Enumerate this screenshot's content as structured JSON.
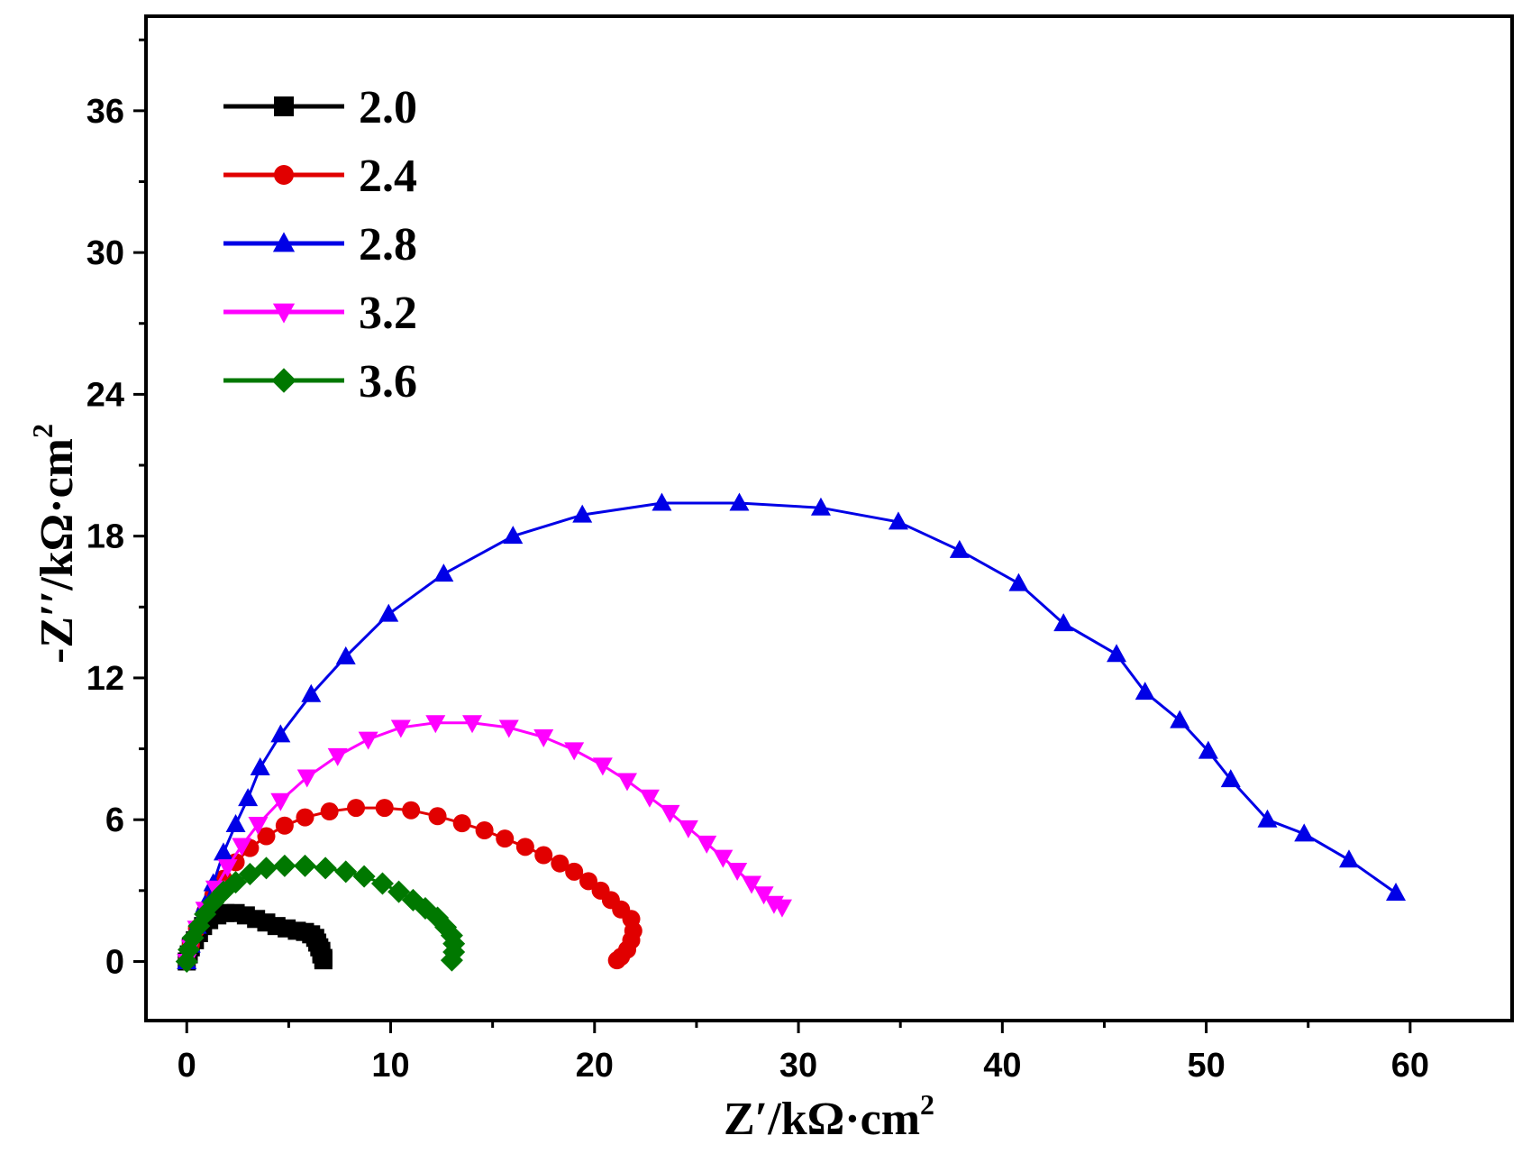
{
  "chart_data": {
    "type": "scatter",
    "title": "",
    "xlabel": "Z′/kΩ·cm²",
    "ylabel": "-Z′′/kΩ·cm²",
    "xlabel_parts": {
      "main": "Z′/kΩ·cm",
      "sup": "2"
    },
    "ylabel_parts": {
      "main": "-Z′′/kΩ·cm",
      "sup": "2"
    },
    "xlim": [
      -2,
      65
    ],
    "ylim": [
      -2.5,
      40
    ],
    "xticks": [
      0,
      10,
      20,
      30,
      40,
      50,
      60
    ],
    "yticks": [
      0,
      6,
      12,
      18,
      24,
      30,
      36
    ],
    "xtick_labels": [
      "0",
      "10",
      "20",
      "30",
      "40",
      "50",
      "60"
    ],
    "ytick_labels": [
      "0",
      "6",
      "12",
      "18",
      "24",
      "30",
      "36"
    ],
    "grid": false,
    "legend_position": "top-left",
    "series": [
      {
        "name": "2.0",
        "color": "#000000",
        "marker": "square",
        "points": [
          [
            0,
            0
          ],
          [
            0.1,
            0.3
          ],
          [
            0.2,
            0.6
          ],
          [
            0.4,
            0.9
          ],
          [
            0.6,
            1.2
          ],
          [
            0.8,
            1.5
          ],
          [
            1.1,
            1.75
          ],
          [
            1.5,
            1.95
          ],
          [
            1.9,
            2.05
          ],
          [
            2.4,
            2.05
          ],
          [
            2.9,
            1.95
          ],
          [
            3.4,
            1.8
          ],
          [
            3.9,
            1.65
          ],
          [
            4.4,
            1.5
          ],
          [
            4.9,
            1.4
          ],
          [
            5.4,
            1.3
          ],
          [
            5.8,
            1.25
          ],
          [
            6.1,
            1.15
          ],
          [
            6.3,
            1.0
          ],
          [
            6.4,
            0.8
          ],
          [
            6.5,
            0.6
          ],
          [
            6.6,
            0.45
          ],
          [
            6.6,
            0.3
          ],
          [
            6.7,
            0.15
          ],
          [
            6.7,
            0.05
          ]
        ]
      },
      {
        "name": "2.4",
        "color": "#e10000",
        "marker": "circle",
        "points": [
          [
            0,
            0
          ],
          [
            0.2,
            0.7
          ],
          [
            0.5,
            1.4
          ],
          [
            0.9,
            2.1
          ],
          [
            1.3,
            2.8
          ],
          [
            1.8,
            3.5
          ],
          [
            2.4,
            4.2
          ],
          [
            3.1,
            4.8
          ],
          [
            3.9,
            5.3
          ],
          [
            4.8,
            5.75
          ],
          [
            5.8,
            6.1
          ],
          [
            7.0,
            6.35
          ],
          [
            8.3,
            6.5
          ],
          [
            9.7,
            6.5
          ],
          [
            11.0,
            6.4
          ],
          [
            12.3,
            6.15
          ],
          [
            13.5,
            5.85
          ],
          [
            14.6,
            5.55
          ],
          [
            15.6,
            5.2
          ],
          [
            16.6,
            4.85
          ],
          [
            17.5,
            4.5
          ],
          [
            18.3,
            4.15
          ],
          [
            19.0,
            3.8
          ],
          [
            19.7,
            3.4
          ],
          [
            20.3,
            3.0
          ],
          [
            20.8,
            2.6
          ],
          [
            21.3,
            2.2
          ],
          [
            21.8,
            1.8
          ],
          [
            21.9,
            1.3
          ],
          [
            21.8,
            0.9
          ],
          [
            21.6,
            0.5
          ],
          [
            21.3,
            0.2
          ],
          [
            21.1,
            0.05
          ]
        ]
      },
      {
        "name": "2.8",
        "color": "#0000e6",
        "marker": "triangle-up",
        "points": [
          [
            0,
            0
          ],
          [
            0.2,
            0.7
          ],
          [
            0.5,
            1.5
          ],
          [
            0.9,
            2.4
          ],
          [
            1.3,
            3.3
          ],
          [
            1.8,
            4.6
          ],
          [
            2.4,
            5.8
          ],
          [
            3.0,
            6.9
          ],
          [
            3.6,
            8.2
          ],
          [
            4.6,
            9.6
          ],
          [
            6.1,
            11.3
          ],
          [
            7.8,
            12.9
          ],
          [
            9.9,
            14.7
          ],
          [
            12.6,
            16.4
          ],
          [
            16.0,
            18.0
          ],
          [
            19.4,
            18.9
          ],
          [
            23.3,
            19.4
          ],
          [
            27.1,
            19.4
          ],
          [
            31.1,
            19.2
          ],
          [
            34.9,
            18.6
          ],
          [
            37.9,
            17.4
          ],
          [
            40.8,
            16.0
          ],
          [
            43.0,
            14.3
          ],
          [
            45.6,
            13.0
          ],
          [
            47.0,
            11.4
          ],
          [
            48.7,
            10.2
          ],
          [
            50.1,
            8.9
          ],
          [
            51.2,
            7.7
          ],
          [
            53.0,
            6.0
          ],
          [
            54.8,
            5.4
          ],
          [
            57.0,
            4.3
          ],
          [
            59.3,
            2.9
          ]
        ]
      },
      {
        "name": "3.2",
        "color": "#ff00ff",
        "marker": "triangle-down",
        "points": [
          [
            0,
            0
          ],
          [
            0.2,
            0.6
          ],
          [
            0.5,
            1.4
          ],
          [
            0.9,
            2.2
          ],
          [
            1.4,
            3.1
          ],
          [
            2.0,
            4.0
          ],
          [
            2.7,
            4.9
          ],
          [
            3.5,
            5.8
          ],
          [
            4.6,
            6.8
          ],
          [
            5.9,
            7.8
          ],
          [
            7.4,
            8.7
          ],
          [
            8.9,
            9.4
          ],
          [
            10.5,
            9.9
          ],
          [
            12.2,
            10.1
          ],
          [
            14.0,
            10.1
          ],
          [
            15.8,
            9.9
          ],
          [
            17.5,
            9.5
          ],
          [
            19.0,
            8.95
          ],
          [
            20.4,
            8.3
          ],
          [
            21.6,
            7.65
          ],
          [
            22.7,
            6.95
          ],
          [
            23.7,
            6.3
          ],
          [
            24.6,
            5.65
          ],
          [
            25.5,
            5.0
          ],
          [
            26.3,
            4.4
          ],
          [
            27.0,
            3.85
          ],
          [
            27.7,
            3.3
          ],
          [
            28.3,
            2.85
          ],
          [
            28.8,
            2.45
          ],
          [
            29.2,
            2.3
          ]
        ]
      },
      {
        "name": "3.6",
        "color": "#007800",
        "marker": "diamond",
        "points": [
          [
            0,
            0
          ],
          [
            0.1,
            0.5
          ],
          [
            0.3,
            1.0
          ],
          [
            0.6,
            1.5
          ],
          [
            0.9,
            2.0
          ],
          [
            1.3,
            2.5
          ],
          [
            1.8,
            2.95
          ],
          [
            2.4,
            3.35
          ],
          [
            3.1,
            3.7
          ],
          [
            3.9,
            3.95
          ],
          [
            4.8,
            4.05
          ],
          [
            5.8,
            4.05
          ],
          [
            6.8,
            3.95
          ],
          [
            7.8,
            3.8
          ],
          [
            8.7,
            3.6
          ],
          [
            9.6,
            3.3
          ],
          [
            10.4,
            2.95
          ],
          [
            11.1,
            2.6
          ],
          [
            11.7,
            2.25
          ],
          [
            12.3,
            1.85
          ],
          [
            12.7,
            1.45
          ],
          [
            13.0,
            1.1
          ],
          [
            13.1,
            0.75
          ],
          [
            13.1,
            0.4
          ],
          [
            13.0,
            0.05
          ]
        ]
      }
    ]
  }
}
